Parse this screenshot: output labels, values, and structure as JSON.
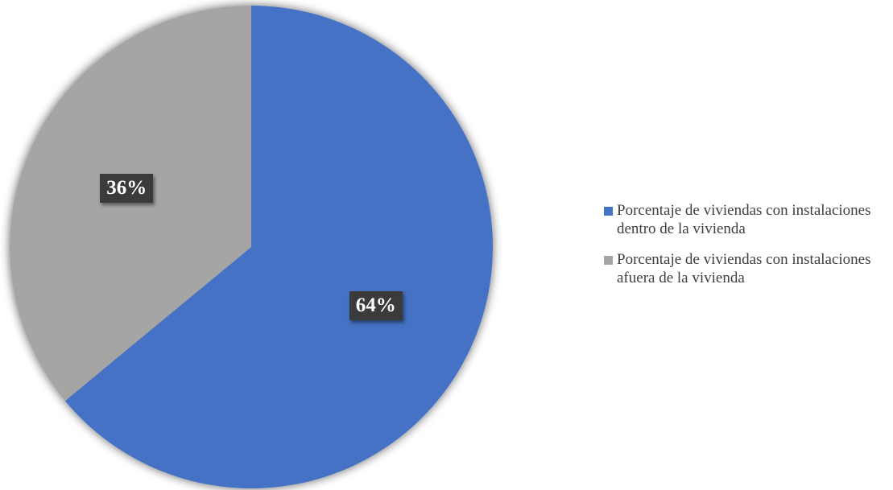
{
  "chart_data": {
    "type": "pie",
    "title": "",
    "legend_position": "right",
    "slices": [
      {
        "label": "Porcentaje de viviendas con instalaciones dentro de la vivienda",
        "value": 64,
        "display": "64%",
        "color": "#4472c4"
      },
      {
        "label": "Porcentaje de viviendas con instalaciones afuera de la vivienda",
        "value": 36,
        "display": "36%",
        "color": "#a5a5a5"
      }
    ]
  }
}
